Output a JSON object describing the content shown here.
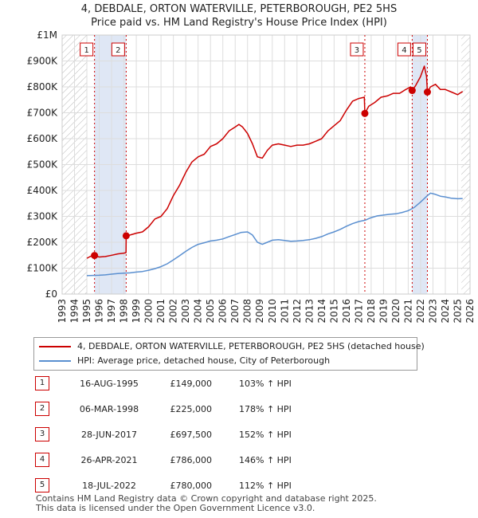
{
  "header": {
    "line1": "4, DEBDALE, ORTON WATERVILLE, PETERBOROUGH, PE2 5HS",
    "line2": "Price paid vs. HM Land Registry's House Price Index (HPI)"
  },
  "colors": {
    "property": "#cc0000",
    "hpi": "#5a8fd0",
    "hatch": "#bbbbbb",
    "shade": "#dfe7f5",
    "grid": "#dddddd"
  },
  "chart_data": {
    "type": "line",
    "title": "4, DEBDALE, ORTON WATERVILLE, PETERBOROUGH, PE2 5HS",
    "subtitle": "Price paid vs. HM Land Registry's House Price Index (HPI)",
    "xlabel": "",
    "ylabel": "",
    "xlim": [
      1993,
      2026
    ],
    "ylim": [
      0,
      1000000
    ],
    "x_ticks": [
      1993,
      1994,
      1995,
      1996,
      1997,
      1998,
      1999,
      2000,
      2001,
      2002,
      2003,
      2004,
      2005,
      2006,
      2007,
      2008,
      2009,
      2010,
      2011,
      2012,
      2013,
      2014,
      2015,
      2016,
      2017,
      2018,
      2019,
      2020,
      2021,
      2022,
      2023,
      2024,
      2025,
      2026
    ],
    "y_ticks": [
      {
        "value": 0,
        "label": "£0"
      },
      {
        "value": 100000,
        "label": "£100K"
      },
      {
        "value": 200000,
        "label": "£200K"
      },
      {
        "value": 300000,
        "label": "£300K"
      },
      {
        "value": 400000,
        "label": "£400K"
      },
      {
        "value": 500000,
        "label": "£500K"
      },
      {
        "value": 600000,
        "label": "£600K"
      },
      {
        "value": 700000,
        "label": "£700K"
      },
      {
        "value": 800000,
        "label": "£800K"
      },
      {
        "value": 900000,
        "label": "£900K"
      },
      {
        "value": 1000000,
        "label": "£1M"
      }
    ],
    "grid": true,
    "hatched_ranges": [
      [
        1993,
        1995.0
      ],
      [
        2025.3,
        2026
      ]
    ],
    "series": [
      {
        "name": "4, DEBDALE, ORTON WATERVILLE, PETERBOROUGH, PE2 5HS (detached house)",
        "color": "#cc0000",
        "points": [
          [
            1995.0,
            138000
          ],
          [
            1995.3,
            146000
          ],
          [
            1995.62,
            149000
          ],
          [
            1996.0,
            143000
          ],
          [
            1996.5,
            145000
          ],
          [
            1997.0,
            150000
          ],
          [
            1997.5,
            155000
          ],
          [
            1998.0,
            158000
          ],
          [
            1998.17,
            160000
          ],
          [
            1998.18,
            225000
          ],
          [
            1998.5,
            228000
          ],
          [
            1999.0,
            235000
          ],
          [
            1999.5,
            240000
          ],
          [
            2000.0,
            260000
          ],
          [
            2000.5,
            290000
          ],
          [
            2001.0,
            300000
          ],
          [
            2001.5,
            330000
          ],
          [
            2002.0,
            380000
          ],
          [
            2002.5,
            420000
          ],
          [
            2003.0,
            470000
          ],
          [
            2003.5,
            510000
          ],
          [
            2004.0,
            530000
          ],
          [
            2004.5,
            540000
          ],
          [
            2005.0,
            570000
          ],
          [
            2005.5,
            580000
          ],
          [
            2006.0,
            600000
          ],
          [
            2006.5,
            630000
          ],
          [
            2007.0,
            645000
          ],
          [
            2007.3,
            655000
          ],
          [
            2007.6,
            645000
          ],
          [
            2008.0,
            620000
          ],
          [
            2008.4,
            580000
          ],
          [
            2008.8,
            530000
          ],
          [
            2009.2,
            525000
          ],
          [
            2009.6,
            555000
          ],
          [
            2010.0,
            575000
          ],
          [
            2010.5,
            580000
          ],
          [
            2011.0,
            575000
          ],
          [
            2011.5,
            570000
          ],
          [
            2012.0,
            575000
          ],
          [
            2012.5,
            575000
          ],
          [
            2013.0,
            580000
          ],
          [
            2013.5,
            590000
          ],
          [
            2014.0,
            600000
          ],
          [
            2014.5,
            630000
          ],
          [
            2015.0,
            650000
          ],
          [
            2015.5,
            670000
          ],
          [
            2016.0,
            710000
          ],
          [
            2016.5,
            745000
          ],
          [
            2017.0,
            755000
          ],
          [
            2017.45,
            760000
          ],
          [
            2017.49,
            697500
          ],
          [
            2017.8,
            725000
          ],
          [
            2018.3,
            740000
          ],
          [
            2018.8,
            760000
          ],
          [
            2019.3,
            765000
          ],
          [
            2019.8,
            775000
          ],
          [
            2020.3,
            775000
          ],
          [
            2020.8,
            790000
          ],
          [
            2021.2,
            800000
          ],
          [
            2021.32,
            786000
          ],
          [
            2021.6,
            805000
          ],
          [
            2022.0,
            840000
          ],
          [
            2022.3,
            880000
          ],
          [
            2022.48,
            840000
          ],
          [
            2022.55,
            780000
          ],
          [
            2022.8,
            800000
          ],
          [
            2023.2,
            810000
          ],
          [
            2023.6,
            790000
          ],
          [
            2024.0,
            790000
          ],
          [
            2024.5,
            780000
          ],
          [
            2025.0,
            770000
          ],
          [
            2025.4,
            782000
          ]
        ]
      },
      {
        "name": "HPI: Average price, detached house, City of Peterborough",
        "color": "#5a8fd0",
        "points": [
          [
            1995.0,
            71000
          ],
          [
            1995.5,
            72000
          ],
          [
            1996.0,
            72500
          ],
          [
            1996.5,
            74000
          ],
          [
            1997.0,
            77000
          ],
          [
            1997.5,
            79000
          ],
          [
            1998.0,
            81000
          ],
          [
            1998.5,
            82000
          ],
          [
            1999.0,
            85000
          ],
          [
            1999.5,
            87000
          ],
          [
            2000.0,
            92000
          ],
          [
            2000.5,
            98000
          ],
          [
            2001.0,
            106000
          ],
          [
            2001.5,
            117000
          ],
          [
            2002.0,
            132000
          ],
          [
            2002.5,
            148000
          ],
          [
            2003.0,
            165000
          ],
          [
            2003.5,
            180000
          ],
          [
            2004.0,
            192000
          ],
          [
            2004.5,
            198000
          ],
          [
            2005.0,
            205000
          ],
          [
            2005.5,
            208000
          ],
          [
            2006.0,
            213000
          ],
          [
            2006.5,
            222000
          ],
          [
            2007.0,
            230000
          ],
          [
            2007.5,
            238000
          ],
          [
            2008.0,
            240000
          ],
          [
            2008.4,
            228000
          ],
          [
            2008.8,
            200000
          ],
          [
            2009.2,
            192000
          ],
          [
            2009.6,
            200000
          ],
          [
            2010.0,
            208000
          ],
          [
            2010.5,
            210000
          ],
          [
            2011.0,
            207000
          ],
          [
            2011.5,
            204000
          ],
          [
            2012.0,
            205000
          ],
          [
            2012.5,
            207000
          ],
          [
            2013.0,
            210000
          ],
          [
            2013.5,
            215000
          ],
          [
            2014.0,
            222000
          ],
          [
            2014.5,
            232000
          ],
          [
            2015.0,
            240000
          ],
          [
            2015.5,
            250000
          ],
          [
            2016.0,
            262000
          ],
          [
            2016.5,
            272000
          ],
          [
            2017.0,
            280000
          ],
          [
            2017.5,
            285000
          ],
          [
            2018.0,
            295000
          ],
          [
            2018.5,
            302000
          ],
          [
            2019.0,
            305000
          ],
          [
            2019.5,
            308000
          ],
          [
            2020.0,
            310000
          ],
          [
            2020.5,
            315000
          ],
          [
            2021.0,
            322000
          ],
          [
            2021.5,
            335000
          ],
          [
            2022.0,
            355000
          ],
          [
            2022.5,
            378000
          ],
          [
            2022.8,
            390000
          ],
          [
            2023.2,
            385000
          ],
          [
            2023.6,
            378000
          ],
          [
            2024.0,
            375000
          ],
          [
            2024.5,
            370000
          ],
          [
            2025.0,
            368000
          ],
          [
            2025.4,
            369000
          ]
        ]
      }
    ],
    "sales": [
      {
        "label": "1",
        "x": 1995.62,
        "y": 149000
      },
      {
        "label": "2",
        "x": 1998.18,
        "y": 225000
      },
      {
        "label": "3",
        "x": 2017.49,
        "y": 697500
      },
      {
        "label": "4",
        "x": 2021.32,
        "y": 786000
      },
      {
        "label": "5",
        "x": 2022.55,
        "y": 780000
      }
    ]
  },
  "legend": {
    "property": "4, DEBDALE, ORTON WATERVILLE, PETERBOROUGH, PE2 5HS (detached house)",
    "hpi": "HPI: Average price, detached house, City of Peterborough"
  },
  "sales_table": [
    {
      "num": "1",
      "date": "16-AUG-1995",
      "price": "£149,000",
      "hpi": "103% ↑ HPI"
    },
    {
      "num": "2",
      "date": "06-MAR-1998",
      "price": "£225,000",
      "hpi": "178% ↑ HPI"
    },
    {
      "num": "3",
      "date": "28-JUN-2017",
      "price": "£697,500",
      "hpi": "152% ↑ HPI"
    },
    {
      "num": "4",
      "date": "26-APR-2021",
      "price": "£786,000",
      "hpi": "146% ↑ HPI"
    },
    {
      "num": "5",
      "date": "18-JUL-2022",
      "price": "£780,000",
      "hpi": "112% ↑ HPI"
    }
  ],
  "footer": {
    "line1": "Contains HM Land Registry data © Crown copyright and database right 2025.",
    "line2": "This data is licensed under the Open Government Licence v3.0."
  }
}
